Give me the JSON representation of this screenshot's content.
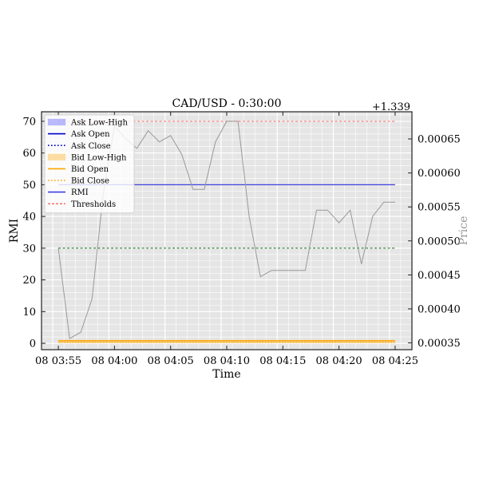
{
  "chart_data": {
    "type": "line",
    "title": "CAD/USD - 0:30:00",
    "xlabel": "Time",
    "ylabel": "RMI",
    "y2label": "Price",
    "y2_offset_label": "+1.339",
    "x_ticks": [
      "08 03:55",
      "08 04:00",
      "08 04:05",
      "08 04:10",
      "08 04:15",
      "08 04:20",
      "08 04:25"
    ],
    "x_tick_minutes": [
      0,
      5,
      10,
      15,
      20,
      25,
      30
    ],
    "y_ticks": [
      "0",
      "10",
      "20",
      "30",
      "40",
      "50",
      "60",
      "70"
    ],
    "y_tick_values": [
      0,
      10,
      20,
      30,
      40,
      50,
      60,
      70
    ],
    "y2_ticks": [
      "0.00035",
      "0.00040",
      "0.00045",
      "0.00050",
      "0.00055",
      "0.00060",
      "0.00065"
    ],
    "y2_tick_values": [
      0.00035,
      0.0004,
      0.00045,
      0.0005,
      0.00055,
      0.0006,
      0.00065
    ],
    "xlim": [
      -1.5,
      31.5
    ],
    "ylim": [
      -2,
      73
    ],
    "y2lim": [
      0.00034,
      0.00069
    ],
    "grid": true,
    "legend_position": "top-left",
    "legend": [
      {
        "label": "Ask Low-High",
        "kind": "fill",
        "color": "#3f3fff"
      },
      {
        "label": "Ask Open",
        "kind": "solid",
        "color": "#0000cc"
      },
      {
        "label": "Ask Close",
        "kind": "dotted",
        "color": "#0000cc"
      },
      {
        "label": "Bid Low-High",
        "kind": "fill",
        "color": "#ffa500"
      },
      {
        "label": "Bid Open",
        "kind": "solid",
        "color": "#ffa500"
      },
      {
        "label": "Bid Close",
        "kind": "dotted",
        "color": "#ffa500"
      },
      {
        "label": "RMI",
        "kind": "solid",
        "color": "#3f3fdf"
      },
      {
        "label": "Thresholds",
        "kind": "dashed",
        "color": "#ff4040"
      }
    ],
    "rmi": {
      "minutes": [
        0,
        1,
        2,
        3,
        4,
        5,
        6,
        7,
        8,
        9,
        10,
        11,
        12,
        13,
        14,
        15,
        16,
        17,
        18,
        19,
        20,
        21,
        22,
        23,
        24,
        25,
        26,
        27,
        28,
        29,
        30
      ],
      "values": [
        30,
        1.5,
        3.5,
        14,
        47,
        68.5,
        64.5,
        61.5,
        67,
        63.5,
        65.5,
        59.5,
        48.5,
        48.5,
        63.5,
        70,
        70,
        40,
        21,
        23,
        23,
        23,
        23,
        42,
        42,
        38,
        42,
        25,
        40,
        44.5,
        44.5
      ]
    },
    "threshold_high": 70,
    "threshold_mid": 30,
    "rmi_mid_line": 50,
    "price_level": 0.000352,
    "colors": {
      "threshold_high": "#ff8080",
      "threshold_mid": "#2e7d32",
      "rmi_mid": "#3f3fdf",
      "price_line": "#999999",
      "bid": "#ffa500",
      "ask": "#3f3fff",
      "plot_bg": "#e5e5e5",
      "grid": "#ffffff"
    }
  }
}
